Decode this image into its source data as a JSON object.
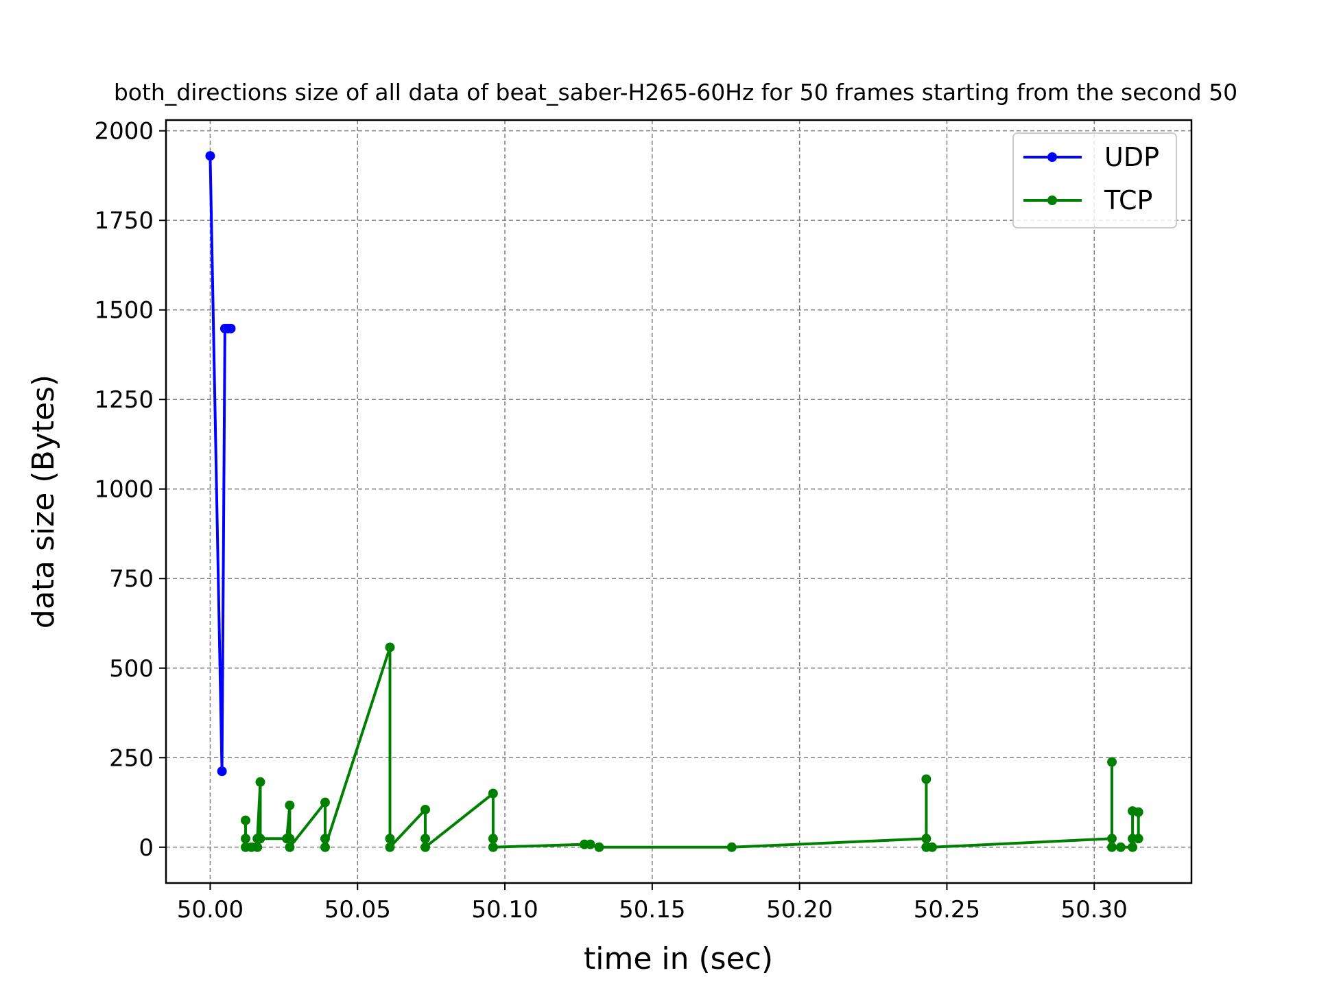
{
  "chart_data": {
    "type": "line",
    "title": "both_directions size of all data of beat_saber-H265-60Hz for 50 frames starting from the second 50",
    "xlabel": "time in (sec)",
    "ylabel": "data size (Bytes)",
    "xlim": [
      49.985,
      50.333
    ],
    "ylim": [
      -100,
      2030
    ],
    "xticks": [
      50.0,
      50.05,
      50.1,
      50.15,
      50.2,
      50.25,
      50.3
    ],
    "xtick_labels": [
      "50.00",
      "50.05",
      "50.10",
      "50.15",
      "50.20",
      "50.25",
      "50.30"
    ],
    "yticks": [
      0,
      250,
      500,
      750,
      1000,
      1250,
      1500,
      1750,
      2000
    ],
    "ytick_labels": [
      "0",
      "250",
      "500",
      "750",
      "1000",
      "1250",
      "1500",
      "1750",
      "2000"
    ],
    "grid": true,
    "legend_position": "top-right",
    "series": [
      {
        "name": "UDP",
        "color": "#0000ff",
        "x": [
          50.0,
          50.004,
          50.005,
          50.006,
          50.007
        ],
        "y": [
          1930,
          212,
          1448,
          1448,
          1448
        ]
      },
      {
        "name": "TCP",
        "color": "#008000",
        "x": [
          50.012,
          50.012,
          50.012,
          50.014,
          50.016,
          50.016,
          50.017,
          50.017,
          50.026,
          50.027,
          50.027,
          50.027,
          50.039,
          50.039,
          50.039,
          50.061,
          50.061,
          50.061,
          50.073,
          50.073,
          50.073,
          50.096,
          50.096,
          50.096,
          50.127,
          50.129,
          50.132,
          50.177,
          50.243,
          50.243,
          50.243,
          50.245,
          50.306,
          50.306,
          50.306,
          50.309,
          50.313,
          50.313,
          50.313,
          50.315,
          50.315
        ],
        "y": [
          75,
          24,
          0,
          0,
          0,
          24,
          182,
          24,
          24,
          117,
          24,
          0,
          125,
          24,
          0,
          558,
          24,
          0,
          105,
          24,
          0,
          150,
          24,
          0,
          8,
          8,
          0,
          0,
          24,
          190,
          0,
          0,
          24,
          238,
          0,
          0,
          0,
          101,
          24,
          24,
          98
        ]
      }
    ]
  }
}
